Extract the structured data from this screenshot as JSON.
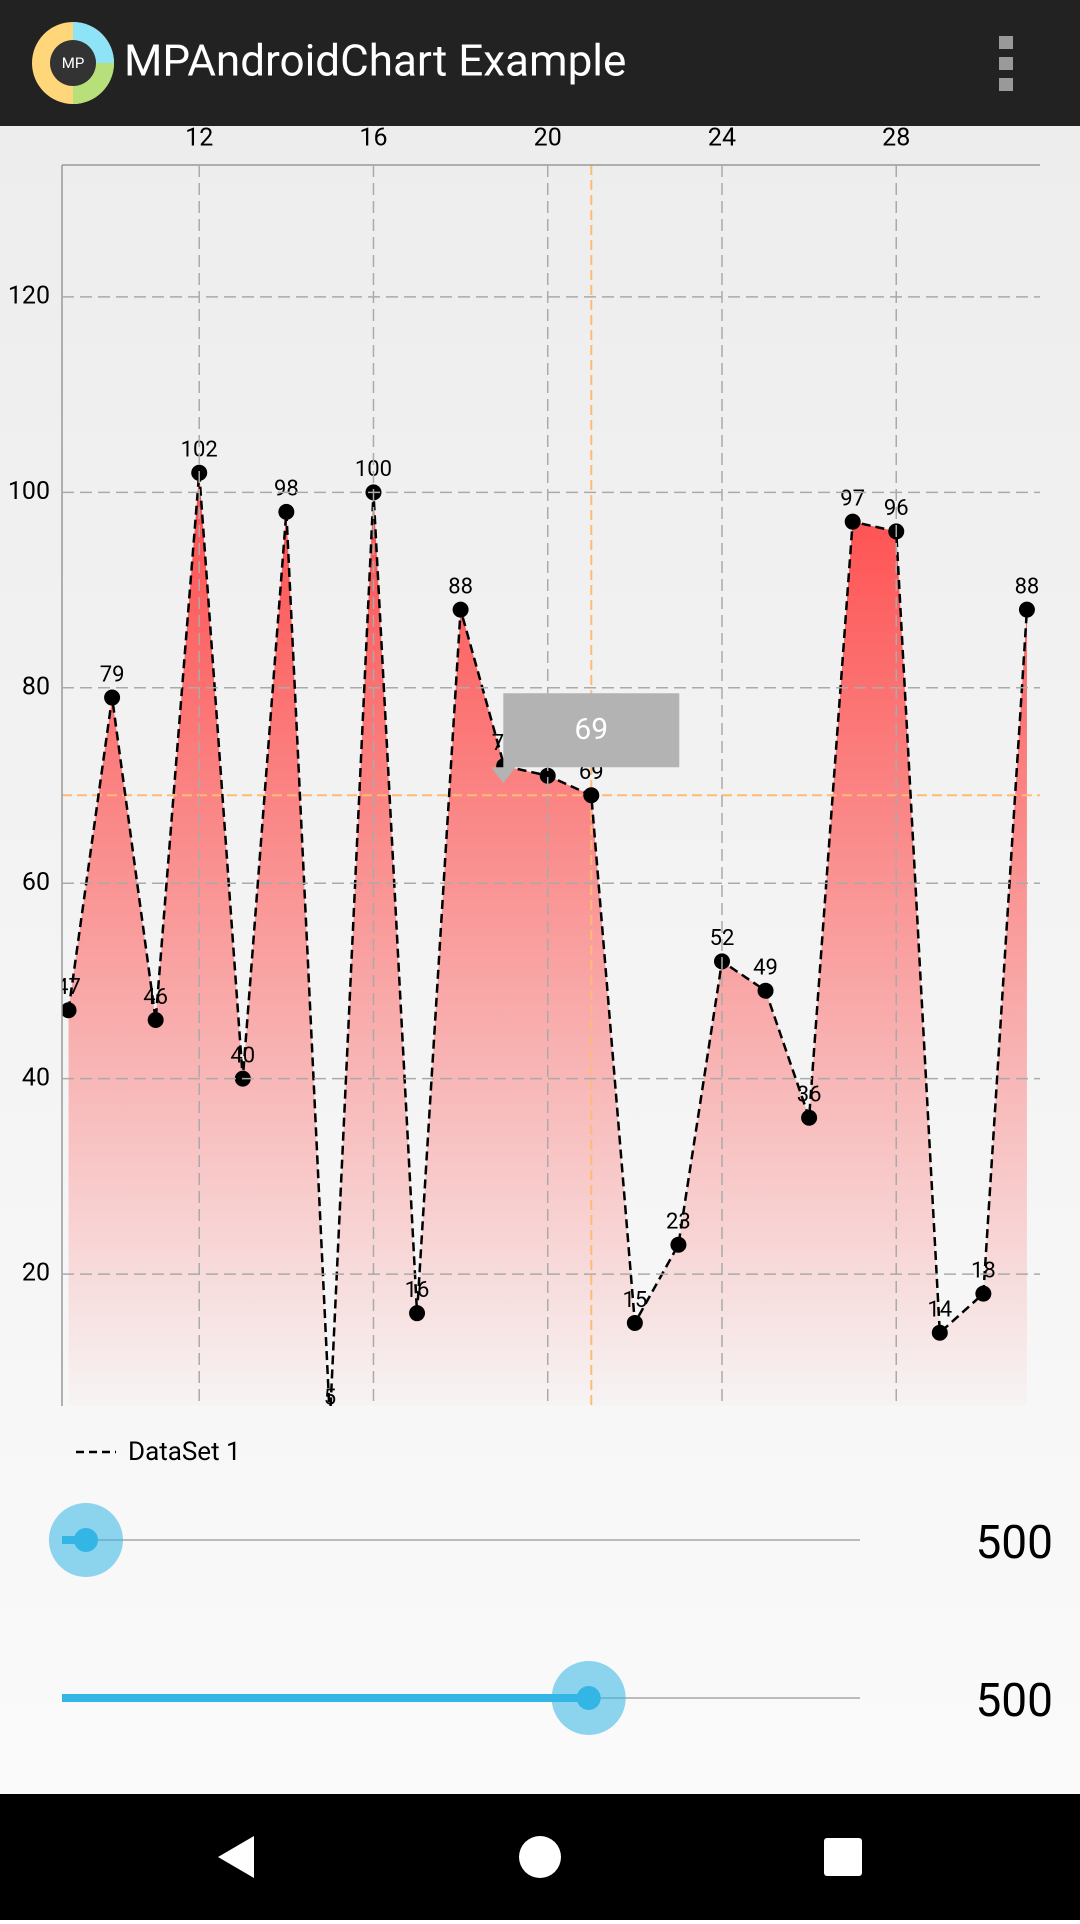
{
  "app_bar": {
    "title": "MPAndroidChart Example",
    "icon_text": "MP"
  },
  "chart_data": {
    "type": "line",
    "x": [
      9,
      10,
      11,
      12,
      13,
      14,
      15,
      16,
      17,
      18,
      19,
      20,
      21,
      22,
      23,
      24,
      25,
      26,
      27,
      28,
      29,
      30,
      31
    ],
    "series": [
      {
        "name": "DataSet 1",
        "color": "#000000",
        "fill_color": "#ff5050",
        "values": [
          47,
          79,
          46,
          102,
          40,
          98,
          5,
          100,
          16,
          88,
          72,
          71,
          69,
          15,
          23,
          52,
          49,
          36,
          97,
          96,
          14,
          18,
          88
        ]
      }
    ],
    "xlim": [
      8.85,
      31.3
    ],
    "xticks": [
      12,
      16,
      20,
      24,
      28
    ],
    "ylim": [
      6.5,
      133.5
    ],
    "yticks": [
      20,
      40,
      60,
      80,
      100,
      120
    ],
    "grid": true,
    "highlight_index": 12,
    "highlight_color": "#ffbb73",
    "legend": "bottom-left"
  },
  "sliders": [
    {
      "value": 500,
      "progress": 3
    },
    {
      "value": 500,
      "progress": 66
    }
  ]
}
